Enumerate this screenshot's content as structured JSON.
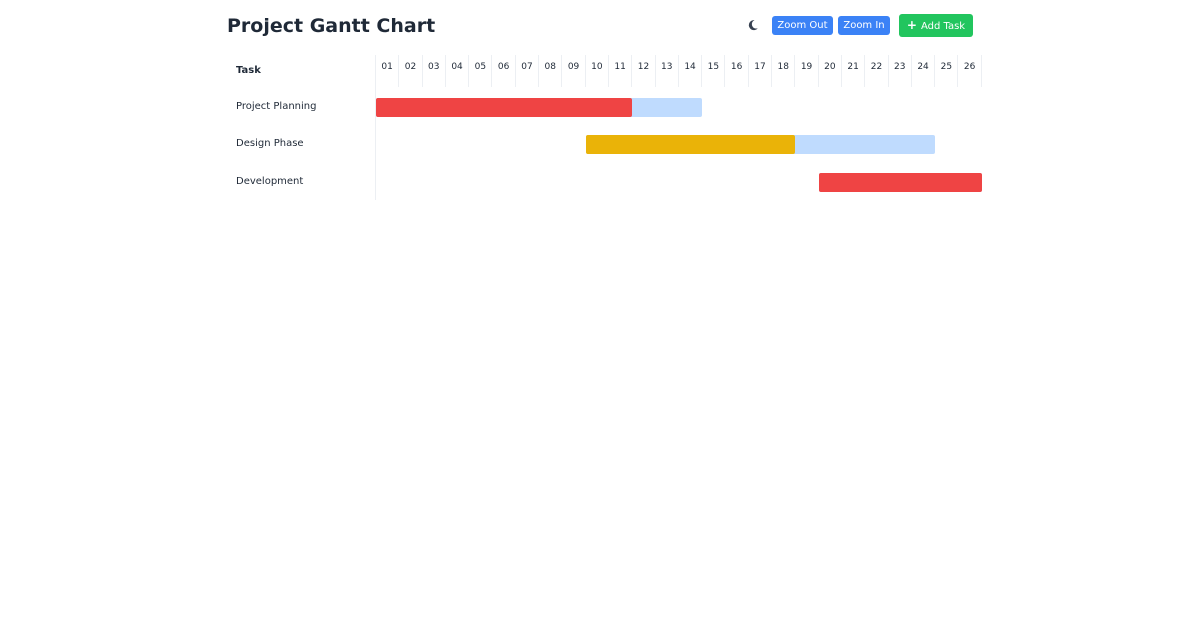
{
  "header": {
    "title": "Project Gantt Chart",
    "theme_icon": "moon-icon",
    "zoom_out_label": "Zoom Out",
    "zoom_in_label": "Zoom In",
    "add_task_label": "Add Task",
    "add_icon": "plus-icon"
  },
  "gantt": {
    "task_header": "Task",
    "days": [
      "01",
      "02",
      "03",
      "04",
      "05",
      "06",
      "07",
      "08",
      "09",
      "10",
      "11",
      "12",
      "13",
      "14",
      "15",
      "16",
      "17",
      "18",
      "19",
      "20",
      "21",
      "22",
      "23",
      "24",
      "25",
      "26"
    ],
    "tasks": [
      {
        "name": "Project Planning",
        "start_day": 1,
        "end_day": 14,
        "progress_end_day": 11,
        "color": "#ef4444"
      },
      {
        "name": "Design Phase",
        "start_day": 10,
        "end_day": 24,
        "progress_end_day": 18,
        "color": "#eab308"
      },
      {
        "name": "Development",
        "start_day": 20,
        "end_day": 26,
        "progress_end_day": 26,
        "color": "#ef4444"
      }
    ],
    "track_color": "#bfdbfe"
  },
  "colors": {
    "primary_button": "#3b82f6",
    "add_button": "#22c55e"
  }
}
